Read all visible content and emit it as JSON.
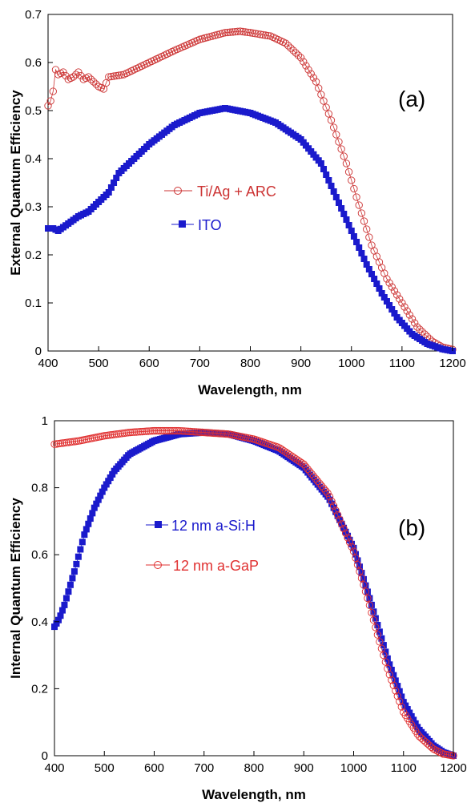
{
  "chart_data": [
    {
      "type": "scatter",
      "panel_label": "(a)",
      "xlabel": "Wavelength, nm",
      "ylabel": "External Quantum Efficiency",
      "xlim": [
        400,
        1200
      ],
      "ylim": [
        0,
        0.7
      ],
      "xticks": [
        "400",
        "500",
        "600",
        "700",
        "800",
        "900",
        "1000",
        "1100",
        "1200"
      ],
      "yticks": [
        "0",
        "0.1",
        "0.2",
        "0.3",
        "0.4",
        "0.5",
        "0.6",
        "0.7"
      ],
      "grid": false,
      "legend_position": "center-left",
      "series": [
        {
          "name": "Ti/Ag + ARC",
          "color": "#cc3333",
          "marker": "open-circle",
          "anchors": [
            [
              400,
              0.51
            ],
            [
              405,
              0.52
            ],
            [
              410,
              0.54
            ],
            [
              415,
              0.585
            ],
            [
              420,
              0.575
            ],
            [
              430,
              0.58
            ],
            [
              440,
              0.565
            ],
            [
              450,
              0.57
            ],
            [
              460,
              0.58
            ],
            [
              470,
              0.565
            ],
            [
              480,
              0.57
            ],
            [
              490,
              0.56
            ],
            [
              500,
              0.55
            ],
            [
              510,
              0.545
            ],
            [
              520,
              0.57
            ],
            [
              550,
              0.575
            ],
            [
              600,
              0.6
            ],
            [
              650,
              0.625
            ],
            [
              700,
              0.648
            ],
            [
              750,
              0.662
            ],
            [
              780,
              0.665
            ],
            [
              800,
              0.662
            ],
            [
              840,
              0.655
            ],
            [
              870,
              0.64
            ],
            [
              900,
              0.61
            ],
            [
              930,
              0.56
            ],
            [
              960,
              0.48
            ],
            [
              990,
              0.39
            ],
            [
              1010,
              0.32
            ],
            [
              1040,
              0.22
            ],
            [
              1070,
              0.15
            ],
            [
              1100,
              0.1
            ],
            [
              1130,
              0.05
            ],
            [
              1160,
              0.02
            ],
            [
              1180,
              0.008
            ],
            [
              1200,
              0.003
            ]
          ]
        },
        {
          "name": "ITO",
          "color": "#1a1acc",
          "marker": "filled-square",
          "anchors": [
            [
              400,
              0.255
            ],
            [
              410,
              0.255
            ],
            [
              420,
              0.25
            ],
            [
              440,
              0.265
            ],
            [
              460,
              0.28
            ],
            [
              480,
              0.29
            ],
            [
              500,
              0.31
            ],
            [
              520,
              0.33
            ],
            [
              540,
              0.37
            ],
            [
              560,
              0.39
            ],
            [
              600,
              0.43
            ],
            [
              650,
              0.47
            ],
            [
              700,
              0.495
            ],
            [
              750,
              0.505
            ],
            [
              800,
              0.495
            ],
            [
              850,
              0.475
            ],
            [
              900,
              0.44
            ],
            [
              940,
              0.39
            ],
            [
              970,
              0.32
            ],
            [
              1000,
              0.25
            ],
            [
              1030,
              0.18
            ],
            [
              1060,
              0.12
            ],
            [
              1090,
              0.07
            ],
            [
              1120,
              0.035
            ],
            [
              1150,
              0.015
            ],
            [
              1180,
              0.004
            ],
            [
              1200,
              0.0
            ]
          ]
        }
      ]
    },
    {
      "type": "scatter",
      "panel_label": "(b)",
      "xlabel": "Wavelength, nm",
      "ylabel": "Internal Quantum Efficiency",
      "xlim": [
        400,
        1200
      ],
      "ylim": [
        0,
        1
      ],
      "xticks": [
        "400",
        "500",
        "600",
        "700",
        "800",
        "900",
        "1000",
        "1100",
        "1200"
      ],
      "yticks": [
        "0",
        "0.2",
        "0.4",
        "0.6",
        "0.8",
        "1"
      ],
      "grid": false,
      "legend_position": "center-left",
      "series": [
        {
          "name": "12 nm a-Si:H",
          "color": "#1a1acc",
          "marker": "filled-square",
          "anchors": [
            [
              400,
              0.385
            ],
            [
              410,
              0.41
            ],
            [
              420,
              0.45
            ],
            [
              440,
              0.55
            ],
            [
              460,
              0.66
            ],
            [
              480,
              0.74
            ],
            [
              500,
              0.8
            ],
            [
              520,
              0.85
            ],
            [
              550,
              0.9
            ],
            [
              600,
              0.94
            ],
            [
              650,
              0.96
            ],
            [
              700,
              0.965
            ],
            [
              750,
              0.96
            ],
            [
              800,
              0.94
            ],
            [
              850,
              0.91
            ],
            [
              900,
              0.86
            ],
            [
              950,
              0.77
            ],
            [
              1000,
              0.62
            ],
            [
              1030,
              0.48
            ],
            [
              1050,
              0.38
            ],
            [
              1070,
              0.28
            ],
            [
              1100,
              0.16
            ],
            [
              1130,
              0.08
            ],
            [
              1160,
              0.03
            ],
            [
              1180,
              0.01
            ],
            [
              1200,
              0.0
            ]
          ]
        },
        {
          "name": "12 nm a-GaP",
          "color": "#e03030",
          "marker": "open-circle",
          "anchors": [
            [
              400,
              0.93
            ],
            [
              450,
              0.94
            ],
            [
              500,
              0.955
            ],
            [
              550,
              0.965
            ],
            [
              600,
              0.97
            ],
            [
              650,
              0.97
            ],
            [
              700,
              0.965
            ],
            [
              750,
              0.96
            ],
            [
              800,
              0.945
            ],
            [
              850,
              0.92
            ],
            [
              900,
              0.87
            ],
            [
              950,
              0.78
            ],
            [
              1000,
              0.61
            ],
            [
              1030,
              0.46
            ],
            [
              1050,
              0.35
            ],
            [
              1070,
              0.25
            ],
            [
              1100,
              0.13
            ],
            [
              1130,
              0.06
            ],
            [
              1160,
              0.02
            ],
            [
              1180,
              0.005
            ],
            [
              1200,
              0.0
            ]
          ]
        }
      ]
    }
  ]
}
